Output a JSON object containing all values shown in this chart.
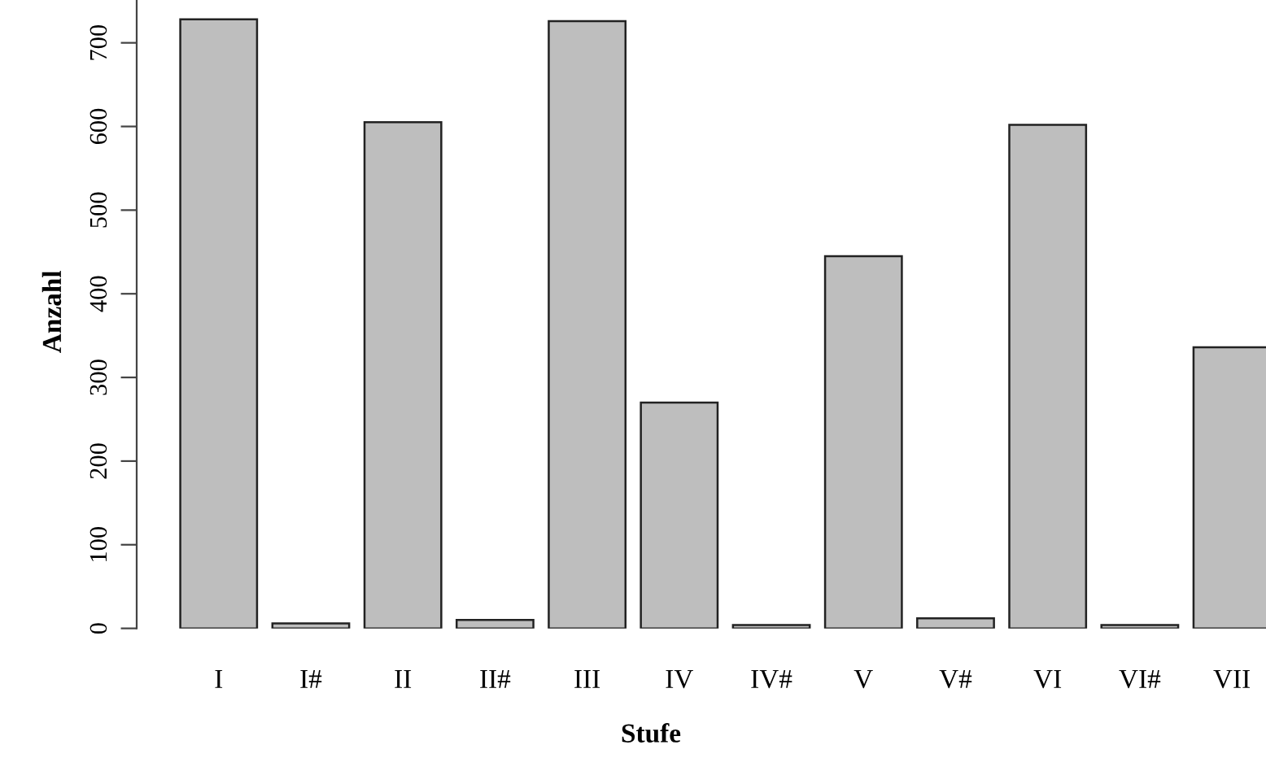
{
  "chart_data": {
    "type": "bar",
    "xlabel": "Stufe",
    "ylabel": "Anzahl",
    "categories": [
      "I",
      "I#",
      "II",
      "II#",
      "III",
      "IV",
      "IV#",
      "V",
      "V#",
      "VI",
      "VI#",
      "VII"
    ],
    "values": [
      728,
      6,
      605,
      10,
      726,
      270,
      4,
      445,
      12,
      602,
      4,
      336
    ],
    "color": "#bebebe",
    "ylim": [
      0,
      757
    ],
    "yticks": [
      0,
      100,
      200,
      300,
      400,
      500,
      600,
      700
    ],
    "grid": false
  }
}
